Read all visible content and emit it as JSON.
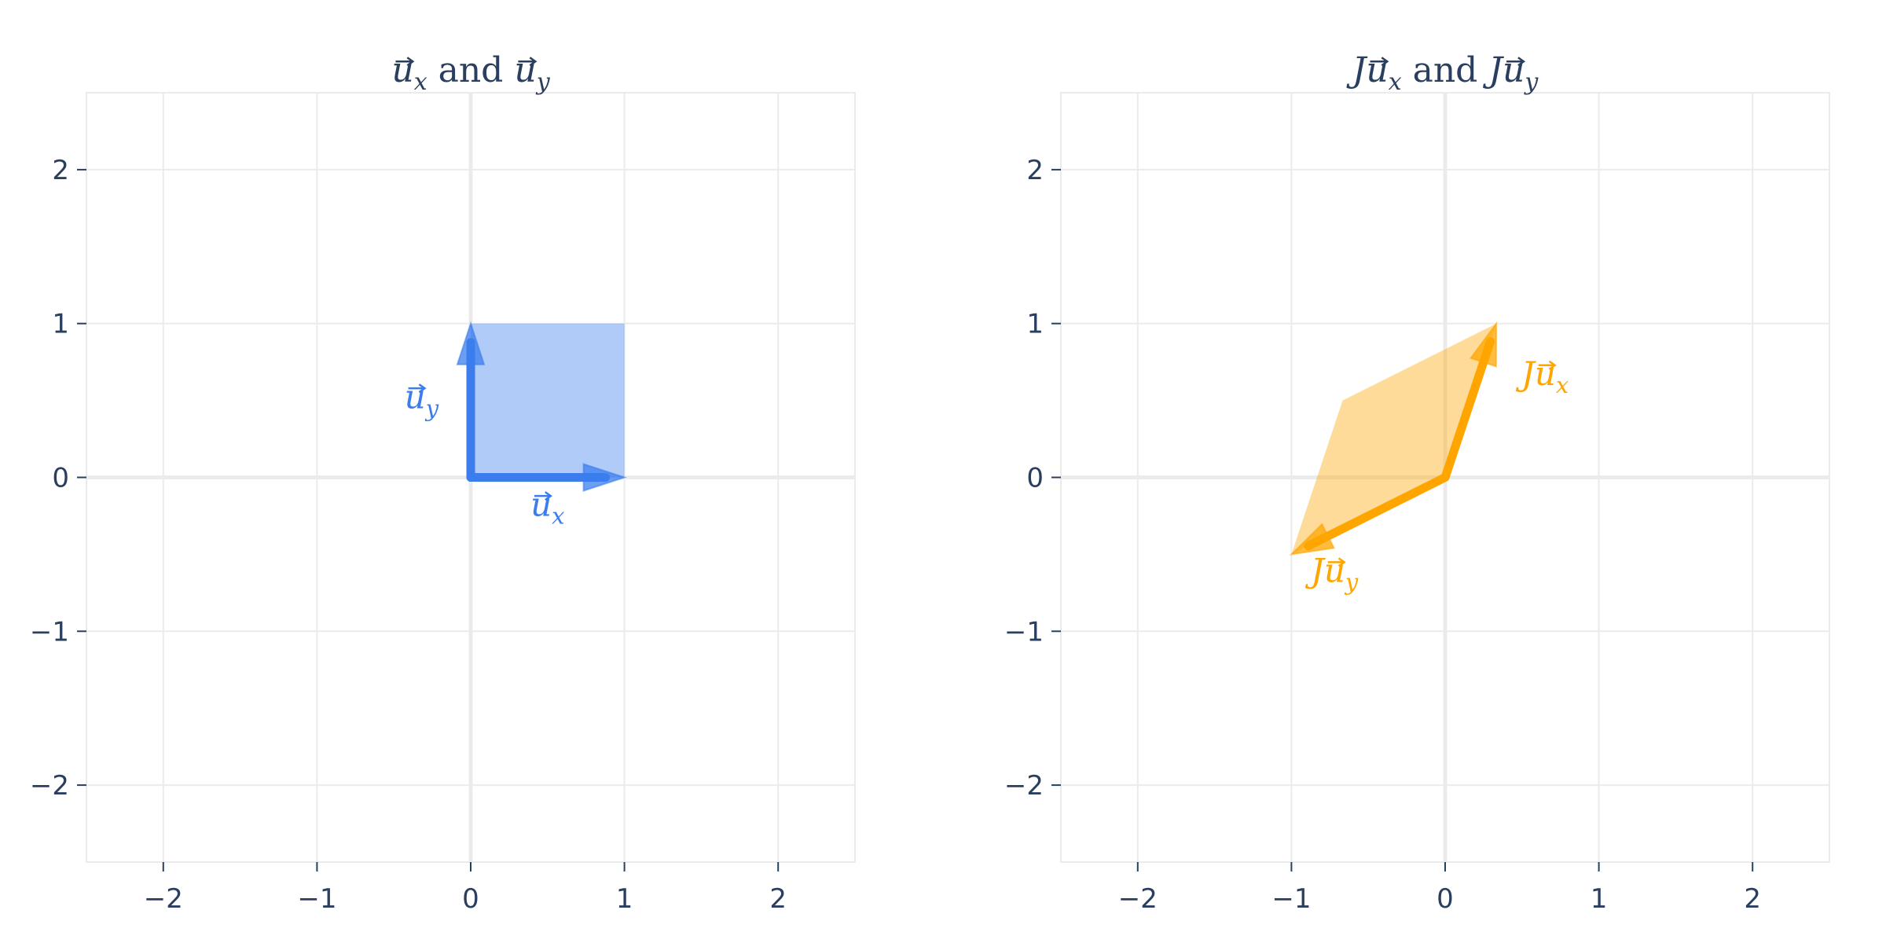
{
  "chart_data": [
    {
      "type": "vector-field",
      "title": {
        "pre": "",
        "a_var": "u",
        "a_sub": "x",
        "mid": " and ",
        "b_pre": "",
        "b_var": "u",
        "b_sub": "y"
      },
      "xlim": [
        -2.5,
        2.5
      ],
      "ylim": [
        -2.5,
        2.5
      ],
      "xticks": [
        -2,
        -1,
        0,
        1,
        2
      ],
      "yticks": [
        -2,
        -1,
        0,
        1,
        2
      ],
      "grid": true,
      "color": "#3b7ded",
      "fill_opacity": 0.4,
      "parallelogram": [
        [
          0,
          0
        ],
        [
          1,
          0
        ],
        [
          1,
          1
        ],
        [
          0,
          1
        ]
      ],
      "vectors": [
        {
          "name": "u_x",
          "to": [
            1,
            0
          ],
          "label": {
            "pre": "",
            "var": "u",
            "sub": "x"
          },
          "label_at": [
            0.5,
            -0.25
          ]
        },
        {
          "name": "u_y",
          "to": [
            0,
            1
          ],
          "label": {
            "pre": "",
            "var": "u",
            "sub": "y"
          },
          "label_at": [
            -0.32,
            0.45
          ]
        }
      ]
    },
    {
      "type": "vector-field",
      "title": {
        "pre": "J",
        "a_var": "u",
        "a_sub": "x",
        "mid": " and ",
        "b_pre": "J",
        "b_var": "u",
        "b_sub": "y"
      },
      "xlim": [
        -2.5,
        2.5
      ],
      "ylim": [
        -2.5,
        2.5
      ],
      "xticks": [
        -2,
        -1,
        0,
        1,
        2
      ],
      "yticks": [
        -2,
        -1,
        0,
        1,
        2
      ],
      "grid": true,
      "color": "#ffa500",
      "fill_opacity": 0.4,
      "parallelogram": [
        [
          0,
          0
        ],
        [
          0.333,
          1
        ],
        [
          -0.667,
          0.5
        ],
        [
          -1,
          -0.5
        ]
      ],
      "vectors": [
        {
          "name": "ju_x",
          "to": [
            0.333,
            1
          ],
          "label": {
            "pre": "J",
            "var": "u",
            "sub": "x"
          },
          "label_at": [
            0.65,
            0.6
          ]
        },
        {
          "name": "ju_y",
          "to": [
            -1,
            -0.5
          ],
          "label": {
            "pre": "J",
            "var": "u",
            "sub": "y"
          },
          "label_at": [
            -0.72,
            -0.68
          ]
        }
      ]
    }
  ]
}
